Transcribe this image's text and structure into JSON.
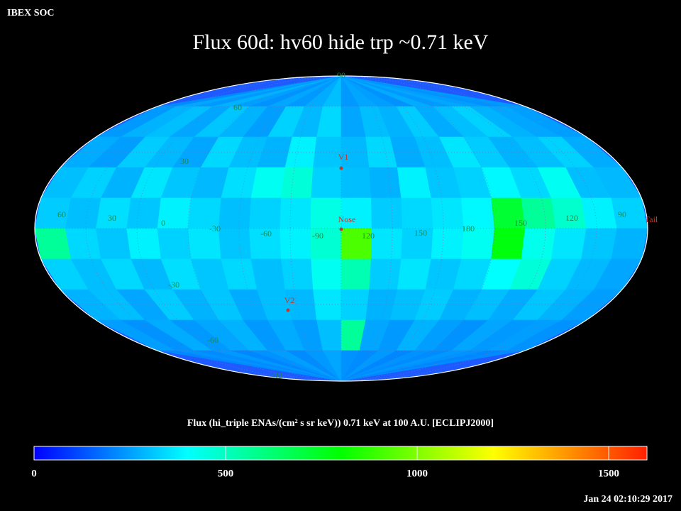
{
  "header": {
    "label": "IBEX SOC",
    "title": "Flux   60d: hv60 hide trp ~0.71 keV",
    "timestamp": "Jan 24 02:10:29 2017"
  },
  "map": {
    "projection": "mollweide",
    "latitude_labels": [
      "90",
      "60",
      "30",
      "-30",
      "-60",
      "-90"
    ],
    "longitude_labels": [
      "60",
      "30",
      "0",
      "-30",
      "-60",
      "-90",
      "120",
      "150",
      "180",
      "150",
      "120",
      "90"
    ],
    "markers": [
      "V1",
      "Nose",
      "V2",
      "Tail"
    ],
    "flux_grid": [
      [
        220,
        260,
        240,
        280,
        250,
        230,
        260,
        240,
        270,
        300,
        240,
        260,
        250,
        230,
        270,
        240,
        260,
        250,
        230,
        240
      ],
      [
        240,
        280,
        300,
        260,
        310,
        280,
        250,
        330,
        290,
        340,
        260,
        300,
        280,
        320,
        270,
        300,
        330,
        280,
        260,
        250
      ],
      [
        270,
        250,
        320,
        290,
        260,
        340,
        300,
        280,
        380,
        310,
        290,
        340,
        270,
        300,
        360,
        320,
        280,
        300,
        330,
        270
      ],
      [
        300,
        330,
        280,
        360,
        310,
        290,
        350,
        420,
        460,
        330,
        300,
        280,
        380,
        310,
        330,
        390,
        340,
        420,
        300,
        290
      ],
      [
        320,
        300,
        350,
        310,
        380,
        340,
        300,
        330,
        360,
        440,
        380,
        320,
        340,
        360,
        390,
        720,
        560,
        480,
        380,
        330
      ],
      [
        560,
        340,
        310,
        380,
        330,
        360,
        310,
        350,
        380,
        470,
        920,
        360,
        330,
        380,
        420,
        780,
        430,
        360,
        310,
        280
      ],
      [
        330,
        300,
        340,
        290,
        350,
        310,
        340,
        300,
        330,
        420,
        520,
        320,
        360,
        310,
        340,
        400,
        460,
        330,
        290,
        260
      ],
      [
        280,
        300,
        260,
        320,
        280,
        310,
        270,
        300,
        290,
        360,
        330,
        280,
        300,
        320,
        280,
        300,
        270,
        310,
        280,
        250
      ],
      [
        250,
        230,
        270,
        240,
        260,
        280,
        240,
        270,
        250,
        300,
        560,
        260,
        240,
        280,
        250,
        230,
        260,
        240,
        250,
        230
      ],
      [
        210,
        230,
        220,
        240,
        210,
        230,
        250,
        220,
        240,
        260,
        230,
        220,
        240,
        210,
        230,
        220,
        240,
        230,
        210,
        220
      ]
    ]
  },
  "colorbar": {
    "title": "Flux (hi_triple ENAs/(cm² s sr keV))  0.71 keV at 100 A.U. [ECLIPJ2000]",
    "lim": [
      0,
      1600
    ],
    "ticks": [
      0,
      500,
      1000,
      1500
    ],
    "colors": [
      "#0000ff",
      "#00ffff",
      "#00ff00",
      "#ffff00",
      "#ff2000"
    ]
  }
}
